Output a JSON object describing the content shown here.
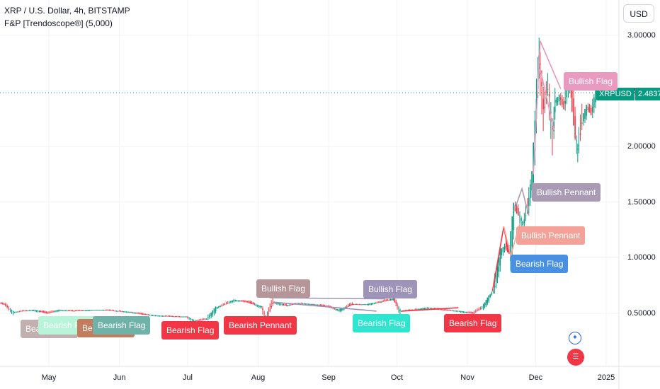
{
  "header": {
    "title": "XRP / U.S. Dollar, 4h, BITSTAMP",
    "indicator": "F&P [Trendoscope®] (5,000)"
  },
  "currency_button": "USD",
  "price_tag": {
    "symbol": "XRPUSD",
    "value": "2.48374"
  },
  "colors": {
    "up": "#089981",
    "down": "#f23645",
    "grid": "#f0f3fa",
    "bearish_flag": "#f23645",
    "bearish_pennant": "#f23645",
    "bullish_flag_pink": "#e89abf",
    "bullish_flag_taupe": "#b59598",
    "bullish_flag_purple": "#9e93b8",
    "bullish_pennant_purple": "#a99bb4",
    "bullish_pennant_salmon": "#f4a298",
    "bearish_flag_blue": "#4a90e2",
    "bearish_flag_cyan": "#2ee6d0",
    "bearish_flag_teal": "#6fb2a8",
    "bearish_flag_brown": "#c57c5e",
    "bearish_flag_mint": "#b8f5d8",
    "bearish_flag_gray": "#c2b0b0"
  },
  "icons": [
    "compass-icon",
    "us-flag-icon"
  ],
  "chart_data": {
    "type": "line",
    "xlabel": "",
    "ylabel": "",
    "x_ticks": [
      "May",
      "Jun",
      "Jul",
      "Aug",
      "Sep",
      "Oct",
      "Nov",
      "Dec",
      "2025"
    ],
    "y_ticks": [
      "3.00000",
      "2.50000",
      "2.00000",
      "1.50000",
      "1.00000",
      "0.50000"
    ],
    "y_tick_values": [
      3.0,
      2.5,
      2.0,
      1.5,
      1.0,
      0.5
    ],
    "ylim": [
      0.0,
      3.15
    ],
    "x_range": [
      "2024-04-08",
      "2025-01-20"
    ],
    "grid": true,
    "series": [
      {
        "values": [
          [
            "2024-04-08",
            0.6
          ],
          [
            "2024-04-12",
            0.58
          ],
          [
            "2024-04-16",
            0.51
          ],
          [
            "2024-04-20",
            0.52
          ],
          [
            "2024-04-25",
            0.53
          ],
          [
            "2024-05-01",
            0.5
          ],
          [
            "2024-05-06",
            0.53
          ],
          [
            "2024-05-12",
            0.52
          ],
          [
            "2024-05-20",
            0.53
          ],
          [
            "2024-05-25",
            0.53
          ],
          [
            "2024-06-01",
            0.52
          ],
          [
            "2024-06-07",
            0.51
          ],
          [
            "2024-06-12",
            0.49
          ],
          [
            "2024-06-18",
            0.48
          ],
          [
            "2024-06-25",
            0.47
          ],
          [
            "2024-07-01",
            0.47
          ],
          [
            "2024-07-05",
            0.43
          ],
          [
            "2024-07-10",
            0.45
          ],
          [
            "2024-07-14",
            0.55
          ],
          [
            "2024-07-18",
            0.58
          ],
          [
            "2024-07-22",
            0.62
          ],
          [
            "2024-07-28",
            0.6
          ],
          [
            "2024-08-03",
            0.56
          ],
          [
            "2024-08-05",
            0.45
          ],
          [
            "2024-08-08",
            0.6
          ],
          [
            "2024-08-14",
            0.57
          ],
          [
            "2024-08-20",
            0.59
          ],
          [
            "2024-08-26",
            0.58
          ],
          [
            "2024-09-01",
            0.56
          ],
          [
            "2024-09-06",
            0.53
          ],
          [
            "2024-09-12",
            0.58
          ],
          [
            "2024-09-18",
            0.58
          ],
          [
            "2024-09-24",
            0.6
          ],
          [
            "2024-09-30",
            0.63
          ],
          [
            "2024-10-03",
            0.52
          ],
          [
            "2024-10-09",
            0.53
          ],
          [
            "2024-10-15",
            0.55
          ],
          [
            "2024-10-22",
            0.53
          ],
          [
            "2024-10-29",
            0.52
          ],
          [
            "2024-11-04",
            0.5
          ],
          [
            "2024-11-08",
            0.55
          ],
          [
            "2024-11-11",
            0.65
          ],
          [
            "2024-11-13",
            0.7
          ],
          [
            "2024-11-16",
            1.05
          ],
          [
            "2024-11-18",
            1.1
          ],
          [
            "2024-11-20",
            1.05
          ],
          [
            "2024-11-22",
            1.45
          ],
          [
            "2024-11-24",
            1.4
          ],
          [
            "2024-11-26",
            1.3
          ],
          [
            "2024-11-28",
            1.45
          ],
          [
            "2024-11-30",
            1.75
          ],
          [
            "2024-12-02",
            2.45
          ],
          [
            "2024-12-03",
            2.85
          ],
          [
            "2024-12-05",
            2.3
          ],
          [
            "2024-12-07",
            2.55
          ],
          [
            "2024-12-09",
            2.1
          ],
          [
            "2024-12-10",
            2.4
          ],
          [
            "2024-12-12",
            2.45
          ],
          [
            "2024-12-14",
            2.35
          ],
          [
            "2024-12-16",
            2.6
          ],
          [
            "2024-12-17",
            2.5
          ],
          [
            "2024-12-19",
            2.1
          ],
          [
            "2024-12-20",
            1.95
          ],
          [
            "2024-12-22",
            2.25
          ],
          [
            "2024-12-24",
            2.35
          ],
          [
            "2024-12-26",
            2.3
          ],
          [
            "2024-12-28",
            2.5
          ],
          [
            "2024-12-30",
            2.48
          ]
        ]
      }
    ],
    "annotations": [
      {
        "label": "Bearish Flag",
        "color": "#c2b0b0"
      },
      {
        "label": "Bearish Flag",
        "color": "#b8f5d8"
      },
      {
        "label": "Bearish Flag",
        "color": "#c57c5e"
      },
      {
        "label": "Bearish Flag",
        "color": "#6fb2a8"
      },
      {
        "label": "Bearish Flag",
        "color": "#f23645"
      },
      {
        "label": "Bearish Pennant",
        "color": "#f23645"
      },
      {
        "label": "Bullish Flag",
        "color": "#b59598"
      },
      {
        "label": "Bullish Flag",
        "color": "#9e93b8"
      },
      {
        "label": "Bearish Flag",
        "color": "#2ee6d0"
      },
      {
        "label": "Bearish Flag",
        "color": "#f23645"
      },
      {
        "label": "Bearish Flag",
        "color": "#4a90e2"
      },
      {
        "label": "Bullish Pennant",
        "color": "#f4a298"
      },
      {
        "label": "Bullish Pennant",
        "color": "#a99bb4"
      },
      {
        "label": "Bullish Flag",
        "color": "#e89abf"
      }
    ]
  }
}
